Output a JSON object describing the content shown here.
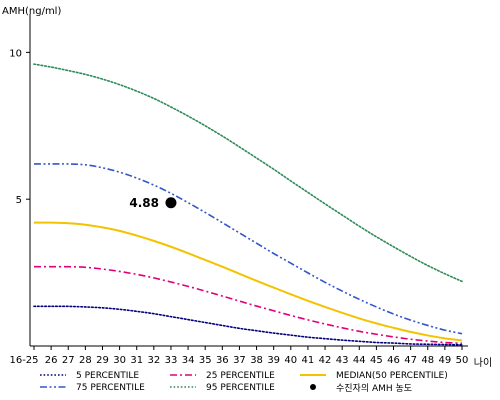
{
  "chart_data": {
    "type": "line",
    "ylabel": "AMH(ng/ml)",
    "xlabel": "나이",
    "ylim": [
      0,
      11
    ],
    "y_ticks": [
      5,
      10
    ],
    "y_tick_labels": [
      "5",
      "10"
    ],
    "categories": [
      "16-25",
      "26",
      "27",
      "28",
      "29",
      "30",
      "31",
      "32",
      "33",
      "34",
      "35",
      "36",
      "37",
      "38",
      "39",
      "40",
      "41",
      "42",
      "43",
      "44",
      "45",
      "46",
      "47",
      "48",
      "49",
      "50"
    ],
    "series": [
      {
        "name": "5 PERCENTILE",
        "color": "#000080",
        "dash": "dotted",
        "values": [
          1.35,
          1.35,
          1.35,
          1.33,
          1.3,
          1.25,
          1.18,
          1.1,
          1.0,
          0.9,
          0.8,
          0.7,
          0.6,
          0.52,
          0.44,
          0.37,
          0.3,
          0.25,
          0.2,
          0.16,
          0.12,
          0.1,
          0.07,
          0.06,
          0.05,
          0.04
        ]
      },
      {
        "name": "25 PERCENTILE",
        "color": "#e0007a",
        "dash": "dashdot",
        "values": [
          2.7,
          2.7,
          2.7,
          2.68,
          2.62,
          2.54,
          2.44,
          2.32,
          2.18,
          2.03,
          1.87,
          1.7,
          1.53,
          1.36,
          1.2,
          1.04,
          0.89,
          0.75,
          0.62,
          0.5,
          0.4,
          0.31,
          0.23,
          0.17,
          0.12,
          0.09
        ]
      },
      {
        "name": "MEDIAN(50 PERCENTILE)",
        "color": "#f2c300",
        "dash": "solid",
        "values": [
          4.2,
          4.2,
          4.18,
          4.13,
          4.04,
          3.92,
          3.76,
          3.58,
          3.38,
          3.16,
          2.93,
          2.7,
          2.46,
          2.22,
          1.99,
          1.76,
          1.54,
          1.33,
          1.13,
          0.94,
          0.77,
          0.62,
          0.48,
          0.36,
          0.26,
          0.19
        ]
      },
      {
        "name": "75 PERCENTILE",
        "color": "#3355cc",
        "dash": "dashdotdot",
        "values": [
          6.2,
          6.2,
          6.2,
          6.17,
          6.07,
          5.92,
          5.72,
          5.48,
          5.2,
          4.88,
          4.55,
          4.2,
          3.85,
          3.5,
          3.15,
          2.82,
          2.49,
          2.17,
          1.87,
          1.59,
          1.33,
          1.09,
          0.88,
          0.7,
          0.54,
          0.42
        ]
      },
      {
        "name": "95 PERCENTILE",
        "color": "#2e8b57",
        "dash": "dotted",
        "values": [
          9.6,
          9.5,
          9.38,
          9.25,
          9.09,
          8.9,
          8.68,
          8.43,
          8.14,
          7.83,
          7.5,
          7.15,
          6.78,
          6.4,
          6.02,
          5.62,
          5.23,
          4.84,
          4.46,
          4.08,
          3.72,
          3.38,
          3.05,
          2.74,
          2.46,
          2.2
        ]
      }
    ],
    "highlight": {
      "name": "수진자의 AMH 농도",
      "x": "33",
      "y": 4.88,
      "label": "4.88",
      "color": "#000000"
    },
    "legend": {
      "placement": "bottom",
      "order": [
        "5 PERCENTILE",
        "25 PERCENTILE",
        "MEDIAN(50 PERCENTILE)",
        "75 PERCENTILE",
        "95 PERCENTILE",
        "수진자의 AMH 농도"
      ]
    },
    "grid": false
  }
}
